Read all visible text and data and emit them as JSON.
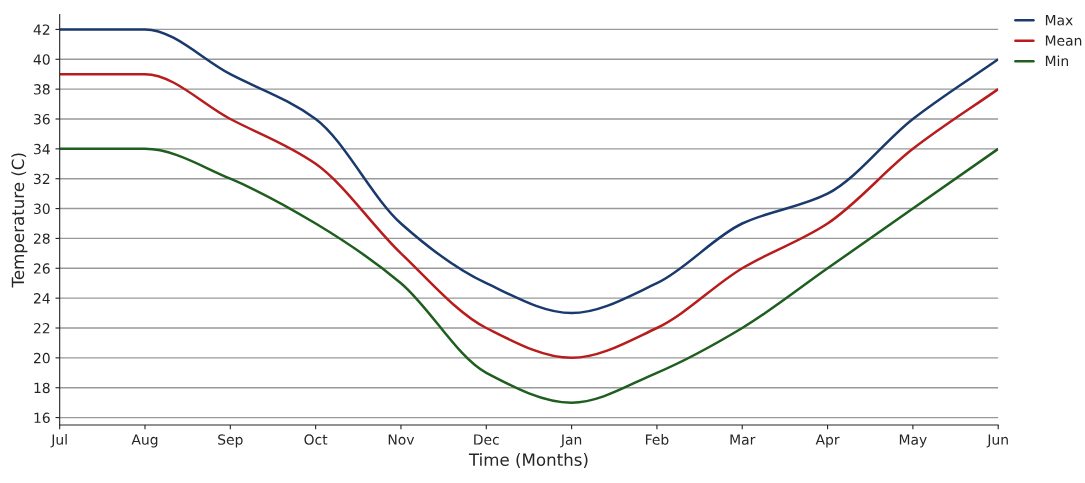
{
  "chart_data": {
    "type": "line",
    "xlabel": "Time (Months)",
    "ylabel": "Temperature (C)",
    "categories": [
      "Jul",
      "Aug",
      "Sep",
      "Oct",
      "Nov",
      "Dec",
      "Jan",
      "Feb",
      "Mar",
      "Apr",
      "May",
      "Jun"
    ],
    "series": [
      {
        "name": "Max",
        "color": "#1a3a6e",
        "values": [
          42,
          42,
          39,
          36,
          29,
          25,
          23,
          25,
          29,
          31,
          36,
          40
        ]
      },
      {
        "name": "Mean",
        "color": "#b81c1c",
        "values": [
          39,
          39,
          36,
          33,
          27,
          22,
          20,
          22,
          26,
          29,
          34,
          38
        ]
      },
      {
        "name": "Min",
        "color": "#1e5e1e",
        "values": [
          34,
          34,
          32,
          29,
          25,
          19,
          17,
          19,
          22,
          26,
          30,
          34
        ]
      }
    ],
    "ylim": [
      15.5,
      43
    ],
    "yticks": [
      16,
      18,
      20,
      22,
      24,
      26,
      28,
      30,
      32,
      34,
      36,
      38,
      40,
      42
    ],
    "grid": "y",
    "legend": "top right",
    "marker": "none",
    "line_style": "solid"
  }
}
